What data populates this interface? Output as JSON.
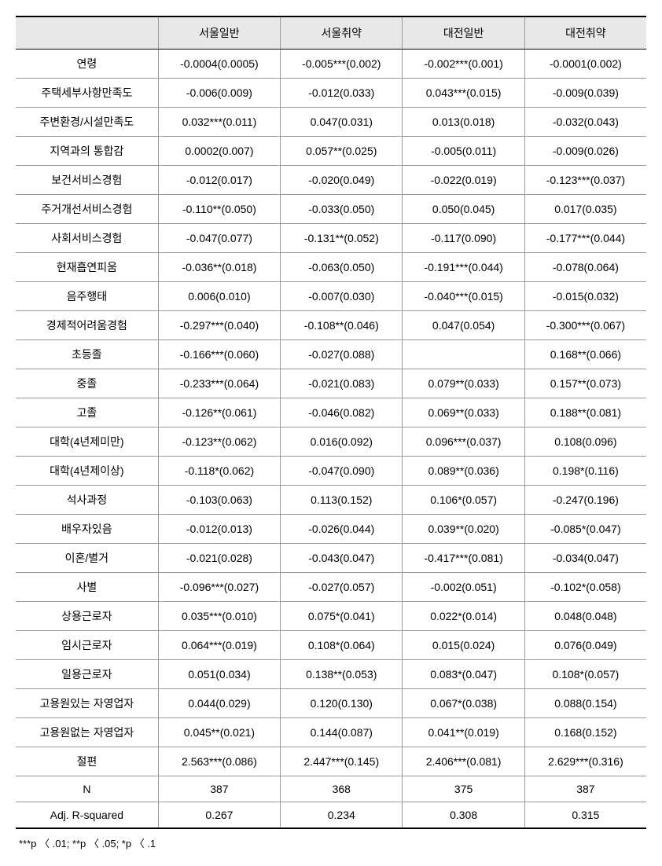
{
  "table": {
    "columns": [
      "",
      "서울일반",
      "서울취약",
      "대전일반",
      "대전취약"
    ],
    "header_bg": "#e8e8e8",
    "border_color": "#999999",
    "heavy_border_color": "#000000",
    "rows": [
      {
        "label": "연령",
        "values": [
          "-0.0004(0.0005)",
          "-0.005***(0.002)",
          "-0.002***(0.001)",
          "-0.0001(0.002)"
        ]
      },
      {
        "label": "주택세부사항만족도",
        "values": [
          "-0.006(0.009)",
          "-0.012(0.033)",
          "0.043***(0.015)",
          "-0.009(0.039)"
        ]
      },
      {
        "label": "주변환경/시설만족도",
        "values": [
          "0.032***(0.011)",
          "0.047(0.031)",
          "0.013(0.018)",
          "-0.032(0.043)"
        ]
      },
      {
        "label": "지역과의 통합감",
        "values": [
          "0.0002(0.007)",
          "0.057**(0.025)",
          "-0.005(0.011)",
          "-0.009(0.026)"
        ]
      },
      {
        "label": "보건서비스경험",
        "values": [
          "-0.012(0.017)",
          "-0.020(0.049)",
          "-0.022(0.019)",
          "-0.123***(0.037)"
        ]
      },
      {
        "label": "주거개선서비스경험",
        "values": [
          "-0.110**(0.050)",
          "-0.033(0.050)",
          "0.050(0.045)",
          "0.017(0.035)"
        ]
      },
      {
        "label": "사회서비스경험",
        "values": [
          "-0.047(0.077)",
          "-0.131**(0.052)",
          "-0.117(0.090)",
          "-0.177***(0.044)"
        ]
      },
      {
        "label": "현재흡연피움",
        "values": [
          "-0.036**(0.018)",
          "-0.063(0.050)",
          "-0.191***(0.044)",
          "-0.078(0.064)"
        ]
      },
      {
        "label": "음주행태",
        "values": [
          "0.006(0.010)",
          "-0.007(0.030)",
          "-0.040***(0.015)",
          "-0.015(0.032)"
        ]
      },
      {
        "label": "경제적어려움경험",
        "values": [
          "-0.297***(0.040)",
          "-0.108**(0.046)",
          "0.047(0.054)",
          "-0.300***(0.067)"
        ]
      },
      {
        "label": "초등졸",
        "values": [
          "-0.166***(0.060)",
          "-0.027(0.088)",
          "",
          "0.168**(0.066)"
        ]
      },
      {
        "label": "중졸",
        "values": [
          "-0.233***(0.064)",
          "-0.021(0.083)",
          "0.079**(0.033)",
          "0.157**(0.073)"
        ]
      },
      {
        "label": "고졸",
        "values": [
          "-0.126**(0.061)",
          "-0.046(0.082)",
          "0.069**(0.033)",
          "0.188**(0.081)"
        ]
      },
      {
        "label": "대학(4년제미만)",
        "values": [
          "-0.123**(0.062)",
          "0.016(0.092)",
          "0.096***(0.037)",
          "0.108(0.096)"
        ]
      },
      {
        "label": "대학(4년제이상)",
        "values": [
          "-0.118*(0.062)",
          "-0.047(0.090)",
          "0.089**(0.036)",
          "0.198*(0.116)"
        ]
      },
      {
        "label": "석사과정",
        "values": [
          "-0.103(0.063)",
          "0.113(0.152)",
          "0.106*(0.057)",
          "-0.247(0.196)"
        ]
      },
      {
        "label": "배우자있음",
        "values": [
          "-0.012(0.013)",
          "-0.026(0.044)",
          "0.039**(0.020)",
          "-0.085*(0.047)"
        ]
      },
      {
        "label": "이혼/별거",
        "values": [
          "-0.021(0.028)",
          "-0.043(0.047)",
          "-0.417***(0.081)",
          "-0.034(0.047)"
        ]
      },
      {
        "label": "사별",
        "values": [
          "-0.096***(0.027)",
          "-0.027(0.057)",
          "-0.002(0.051)",
          "-0.102*(0.058)"
        ]
      },
      {
        "label": "상용근로자",
        "values": [
          "0.035***(0.010)",
          "0.075*(0.041)",
          "0.022*(0.014)",
          "0.048(0.048)"
        ]
      },
      {
        "label": "임시근로자",
        "values": [
          "0.064***(0.019)",
          "0.108*(0.064)",
          "0.015(0.024)",
          "0.076(0.049)"
        ]
      },
      {
        "label": "일용근로자",
        "values": [
          "0.051(0.034)",
          "0.138**(0.053)",
          "0.083*(0.047)",
          "0.108*(0.057)"
        ]
      },
      {
        "label": "고용원있는 자영업자",
        "values": [
          "0.044(0.029)",
          "0.120(0.130)",
          "0.067*(0.038)",
          "0.088(0.154)"
        ]
      },
      {
        "label": "고용원없는 자영업자",
        "values": [
          "0.045**(0.021)",
          "0.144(0.087)",
          "0.041**(0.019)",
          "0.168(0.152)"
        ]
      },
      {
        "label": "절편",
        "values": [
          "2.563***(0.086)",
          "2.447***(0.145)",
          "2.406***(0.081)",
          "2.629***(0.316)"
        ]
      },
      {
        "label": "N",
        "values": [
          "387",
          "368",
          "375",
          "387"
        ]
      },
      {
        "label": "Adj. R-squared",
        "values": [
          "0.267",
          "0.234",
          "0.308",
          "0.315"
        ]
      }
    ]
  },
  "footnote": "***p 〈 .01; **p 〈 .05; *p 〈 .1"
}
